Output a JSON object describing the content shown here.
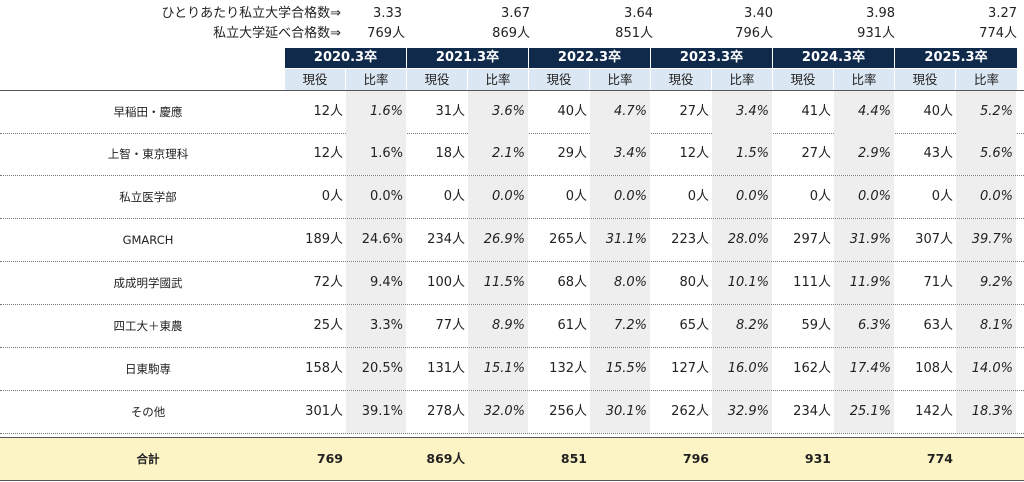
{
  "summary": {
    "per_student_label": "ひとりあたり私立大学合格数⇒",
    "per_student": [
      "3.33",
      "3.67",
      "3.64",
      "3.40",
      "3.98",
      "3.27"
    ],
    "total_label": "私立大学延べ合格数⇒",
    "totals": [
      "769人",
      "869人",
      "851人",
      "796人",
      "931人",
      "774人"
    ]
  },
  "years": [
    "2020.3卒",
    "2021.3卒",
    "2022.3卒",
    "2023.3卒",
    "2024.3卒",
    "2025.3卒"
  ],
  "sub_headers": {
    "count": "現役",
    "rate": "比率"
  },
  "rows": [
    {
      "name": "早稲田・慶應",
      "cells": [
        [
          "12人",
          "1.6%"
        ],
        [
          "31人",
          "3.6%"
        ],
        [
          "40人",
          "4.7%"
        ],
        [
          "27人",
          "3.4%"
        ],
        [
          "41人",
          "4.4%"
        ],
        [
          "40人",
          "5.2%"
        ]
      ]
    },
    {
      "name": "上智・東京理科",
      "cells": [
        [
          "12人",
          "1.6%"
        ],
        [
          "18人",
          "2.1%"
        ],
        [
          "29人",
          "3.4%"
        ],
        [
          "12人",
          "1.5%"
        ],
        [
          "27人",
          "2.9%"
        ],
        [
          "43人",
          "5.6%"
        ]
      ]
    },
    {
      "name": "私立医学部",
      "cells": [
        [
          "0人",
          "0.0%"
        ],
        [
          "0人",
          "0.0%"
        ],
        [
          "0人",
          "0.0%"
        ],
        [
          "0人",
          "0.0%"
        ],
        [
          "0人",
          "0.0%"
        ],
        [
          "0人",
          "0.0%"
        ]
      ]
    },
    {
      "name": "GMARCH",
      "cells": [
        [
          "189人",
          "24.6%"
        ],
        [
          "234人",
          "26.9%"
        ],
        [
          "265人",
          "31.1%"
        ],
        [
          "223人",
          "28.0%"
        ],
        [
          "297人",
          "31.9%"
        ],
        [
          "307人",
          "39.7%"
        ]
      ]
    },
    {
      "name": "成成明学國武",
      "cells": [
        [
          "72人",
          "9.4%"
        ],
        [
          "100人",
          "11.5%"
        ],
        [
          "68人",
          "8.0%"
        ],
        [
          "80人",
          "10.1%"
        ],
        [
          "111人",
          "11.9%"
        ],
        [
          "71人",
          "9.2%"
        ]
      ]
    },
    {
      "name": "四工大＋東農",
      "cells": [
        [
          "25人",
          "3.3%"
        ],
        [
          "77人",
          "8.9%"
        ],
        [
          "61人",
          "7.2%"
        ],
        [
          "65人",
          "8.2%"
        ],
        [
          "59人",
          "6.3%"
        ],
        [
          "63人",
          "8.1%"
        ]
      ]
    },
    {
      "name": "日東駒専",
      "cells": [
        [
          "158人",
          "20.5%"
        ],
        [
          "131人",
          "15.1%"
        ],
        [
          "132人",
          "15.5%"
        ],
        [
          "127人",
          "16.0%"
        ],
        [
          "162人",
          "17.4%"
        ],
        [
          "108人",
          "14.0%"
        ]
      ]
    },
    {
      "name": "その他",
      "cells": [
        [
          "301人",
          "39.1%"
        ],
        [
          "278人",
          "32.0%"
        ],
        [
          "256人",
          "30.1%"
        ],
        [
          "262人",
          "32.9%"
        ],
        [
          "234人",
          "25.1%"
        ],
        [
          "142人",
          "18.3%"
        ]
      ]
    }
  ],
  "total_row": {
    "name": "合計",
    "values": [
      "769",
      "869人",
      "851",
      "796",
      "931",
      "774"
    ]
  },
  "colors": {
    "header_bg": "#0f2a4a",
    "subheader_bg": "#dbe7f3",
    "shade": "#eeeeee",
    "total_bg": "#fdf4c6"
  }
}
